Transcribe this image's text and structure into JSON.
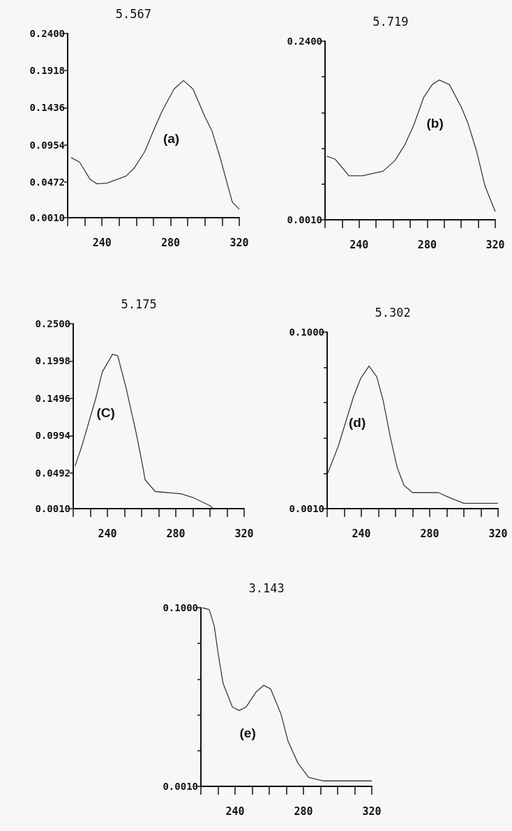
{
  "chart_data": [
    {
      "type": "line",
      "title": "5.567",
      "annotations": [
        "(a)"
      ],
      "marker": "none",
      "xlim": [
        220,
        320
      ],
      "xticks": [
        {
          "value": 220,
          "label": null
        },
        {
          "value": 230,
          "label": null
        },
        240,
        {
          "value": 250,
          "label": null
        },
        {
          "value": 260,
          "label": null
        },
        {
          "value": 270,
          "label": null
        },
        280,
        {
          "value": 290,
          "label": null
        },
        {
          "value": 300,
          "label": null
        },
        {
          "value": 310,
          "label": null
        },
        320
      ],
      "ylim": [
        0.001,
        0.24
      ],
      "yticks": [
        {
          "value": 0.001,
          "label": "0.0010"
        },
        {
          "value": 0.0472,
          "label": "0.0472"
        },
        {
          "value": 0.0954,
          "label": "0.0954"
        },
        {
          "value": 0.1436,
          "label": "0.1436"
        },
        {
          "value": 0.1918,
          "label": "0.1918"
        },
        {
          "value": 0.24,
          "label": "0.2400"
        }
      ],
      "x": [
        222,
        227,
        233,
        237,
        243,
        254,
        259,
        265,
        270,
        275,
        282,
        287.5,
        293,
        300,
        304,
        309,
        313,
        316,
        320
      ],
      "series": [
        {
          "color": "#3a3a3a",
          "values": [
            0.079,
            0.073,
            0.051,
            0.045,
            0.046,
            0.055,
            0.066,
            0.087,
            0.114,
            0.139,
            0.168,
            0.179,
            0.168,
            0.132,
            0.114,
            0.078,
            0.045,
            0.021,
            0.012
          ]
        }
      ]
    },
    {
      "type": "line",
      "title": "5.719",
      "annotations": [
        "(b)"
      ],
      "marker": "none",
      "xlim": [
        220,
        320
      ],
      "xticks": [
        {
          "value": 220,
          "label": null
        },
        {
          "value": 230,
          "label": null
        },
        240,
        {
          "value": 250,
          "label": null
        },
        {
          "value": 260,
          "label": null
        },
        {
          "value": 270,
          "label": null
        },
        280,
        {
          "value": 290,
          "label": null
        },
        {
          "value": 300,
          "label": null
        },
        {
          "value": 310,
          "label": null
        },
        320
      ],
      "ylim": [
        0.001,
        0.24
      ],
      "yticks": [
        {
          "value": 0.001,
          "label": "0.0010"
        },
        {
          "value": 0.0488,
          "label": null
        },
        {
          "value": 0.0966,
          "label": null
        },
        {
          "value": 0.1444,
          "label": null
        },
        {
          "value": 0.1922,
          "label": null
        },
        {
          "value": 0.24,
          "label": "0.2400"
        }
      ],
      "x": [
        221,
        226,
        234,
        242,
        254,
        261,
        267,
        272,
        278,
        283,
        287,
        293,
        300,
        304,
        309,
        314,
        320
      ],
      "series": [
        {
          "color": "#3a3a3a",
          "values": [
            0.086,
            0.082,
            0.06,
            0.06,
            0.066,
            0.08,
            0.102,
            0.127,
            0.165,
            0.182,
            0.188,
            0.182,
            0.152,
            0.13,
            0.093,
            0.046,
            0.012
          ]
        }
      ]
    },
    {
      "type": "line",
      "title": "5.175",
      "annotations": [
        "(C)"
      ],
      "marker": "none",
      "xlim": [
        220,
        320
      ],
      "xticks": [
        {
          "value": 220,
          "label": null
        },
        {
          "value": 230,
          "label": null
        },
        240,
        {
          "value": 250,
          "label": null
        },
        {
          "value": 260,
          "label": null
        },
        {
          "value": 270,
          "label": null
        },
        280,
        {
          "value": 290,
          "label": null
        },
        {
          "value": 300,
          "label": null
        },
        {
          "value": 310,
          "label": null
        },
        320
      ],
      "ylim": [
        0.001,
        0.25
      ],
      "yticks": [
        {
          "value": 0.001,
          "label": "0.0010"
        },
        {
          "value": 0.0492,
          "label": "0.0492"
        },
        {
          "value": 0.0994,
          "label": "0.0994"
        },
        {
          "value": 0.1496,
          "label": "0.1496"
        },
        {
          "value": 0.1998,
          "label": "0.1998"
        },
        {
          "value": 0.25,
          "label": "0.2500"
        }
      ],
      "x": [
        221,
        225,
        233,
        237,
        243,
        246,
        251,
        257,
        261,
        262,
        268,
        283,
        290,
        300,
        302
      ],
      "series": [
        {
          "color": "#3a3a3a",
          "values": [
            0.058,
            0.085,
            0.148,
            0.185,
            0.209,
            0.207,
            0.163,
            0.101,
            0.054,
            0.04,
            0.024,
            0.021,
            0.016,
            0.005,
            0.001
          ]
        }
      ]
    },
    {
      "type": "line",
      "title": "5.302",
      "annotations": [
        "(d)"
      ],
      "marker": "none",
      "xlim": [
        220,
        320
      ],
      "xticks": [
        {
          "value": 220,
          "label": null
        },
        {
          "value": 230,
          "label": null
        },
        240,
        {
          "value": 250,
          "label": null
        },
        {
          "value": 260,
          "label": null
        },
        {
          "value": 270,
          "label": null
        },
        280,
        {
          "value": 290,
          "label": null
        },
        {
          "value": 300,
          "label": null
        },
        {
          "value": 310,
          "label": null
        },
        320
      ],
      "ylim": [
        0.001,
        0.1
      ],
      "yticks": [
        {
          "value": 0.001,
          "label": "0.0010"
        },
        {
          "value": 0.0208,
          "label": null
        },
        {
          "value": 0.0406,
          "label": null
        },
        {
          "value": 0.0604,
          "label": null
        },
        {
          "value": 0.0802,
          "label": null
        },
        {
          "value": 0.1,
          "label": "0.1000"
        }
      ],
      "x": [
        220.4,
        226.5,
        235.5,
        239.6,
        244.5,
        249,
        252.7,
        257,
        261,
        265,
        270,
        285,
        292,
        300,
        320
      ],
      "series": [
        {
          "color": "#3a3a3a",
          "values": [
            0.021,
            0.036,
            0.064,
            0.074,
            0.081,
            0.075,
            0.062,
            0.041,
            0.024,
            0.014,
            0.01,
            0.01,
            0.007,
            0.004,
            0.004
          ]
        }
      ]
    },
    {
      "type": "line",
      "title": "3.143",
      "annotations": [
        "(e)"
      ],
      "marker": "none",
      "xlim": [
        220,
        320
      ],
      "xticks": [
        {
          "value": 220,
          "label": null
        },
        {
          "value": 230,
          "label": null
        },
        240,
        {
          "value": 250,
          "label": null
        },
        {
          "value": 260,
          "label": null
        },
        {
          "value": 270,
          "label": null
        },
        280,
        {
          "value": 290,
          "label": null
        },
        {
          "value": 300,
          "label": null
        },
        {
          "value": 310,
          "label": null
        },
        320
      ],
      "ylim": [
        0.001,
        0.1
      ],
      "yticks": [
        {
          "value": 0.001,
          "label": "0.0010"
        },
        {
          "value": 0.0208,
          "label": null
        },
        {
          "value": 0.0406,
          "label": null
        },
        {
          "value": 0.0604,
          "label": null
        },
        {
          "value": 0.0802,
          "label": null
        },
        {
          "value": 0.1,
          "label": "0.1000"
        }
      ],
      "x": [
        220.8,
        224.9,
        227.8,
        230.2,
        233,
        238.4,
        242.4,
        246.5,
        252,
        256.7,
        260.8,
        266.9,
        271,
        276.7,
        283,
        291.4,
        320
      ],
      "series": [
        {
          "color": "#3a3a3a",
          "values": [
            0.1,
            0.099,
            0.09,
            0.074,
            0.058,
            0.045,
            0.043,
            0.045,
            0.053,
            0.057,
            0.055,
            0.041,
            0.026,
            0.014,
            0.006,
            0.004,
            0.004
          ]
        }
      ]
    }
  ]
}
